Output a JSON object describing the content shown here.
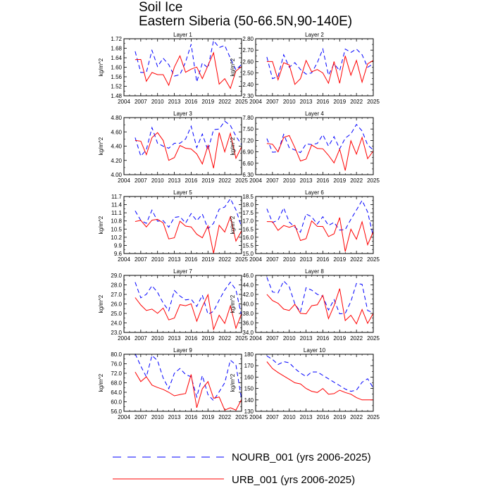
{
  "figure": {
    "title": "Soil Ice",
    "subtitle": "Eastern Siberia (50-66.5N,90-140E)"
  },
  "legend": [
    {
      "label": "NOURB_001 (yrs 2006-2025)",
      "color": "#0000ff",
      "style": "dashed"
    },
    {
      "label": "URB_001 (yrs 2006-2025)",
      "color": "#ff0000",
      "style": "solid"
    }
  ],
  "chart_data": [
    {
      "type": "line",
      "title": "Layer 1",
      "xlabel": "",
      "ylabel": "kg/m^2",
      "xlim": [
        2004,
        2025
      ],
      "xticks": [
        2004,
        2007,
        2010,
        2013,
        2016,
        2019,
        2022,
        2025
      ],
      "ylim": [
        1.48,
        1.72
      ],
      "yticks": [
        "1.48",
        "1.52",
        "1.56",
        "1.60",
        "1.64",
        "1.68",
        "1.72"
      ],
      "x": [
        2006,
        2007,
        2008,
        2009,
        2010,
        2011,
        2012,
        2013,
        2014,
        2015,
        2016,
        2017,
        2018,
        2019,
        2020,
        2021,
        2022,
        2023,
        2024,
        2025
      ],
      "series": [
        {
          "name": "NOURB_001",
          "values": [
            1.667,
            1.578,
            1.578,
            1.671,
            1.603,
            1.638,
            1.611,
            1.563,
            1.569,
            1.622,
            1.697,
            1.538,
            1.618,
            1.597,
            1.712,
            1.683,
            1.692,
            1.638,
            1.589,
            1.612
          ]
        },
        {
          "name": "URB_001",
          "values": [
            1.632,
            1.633,
            1.541,
            1.578,
            1.569,
            1.569,
            1.524,
            1.601,
            1.648,
            1.579,
            1.592,
            1.601,
            1.552,
            1.607,
            1.661,
            1.529,
            1.552,
            1.511,
            1.584,
            1.603
          ]
        }
      ]
    },
    {
      "type": "line",
      "title": "Layer 2",
      "xlabel": "",
      "ylabel": "kg/m^2",
      "xlim": [
        2004,
        2025
      ],
      "xticks": [
        2004,
        2007,
        2010,
        2013,
        2016,
        2019,
        2022,
        2025
      ],
      "ylim": [
        2.3,
        2.8
      ],
      "yticks": [
        "2.30",
        "2.40",
        "2.50",
        "2.60",
        "2.70",
        "2.80"
      ],
      "x": [
        2006,
        2007,
        2008,
        2009,
        2010,
        2011,
        2012,
        2013,
        2014,
        2015,
        2016,
        2017,
        2018,
        2019,
        2020,
        2021,
        2022,
        2023,
        2024,
        2025
      ],
      "series": [
        {
          "name": "NOURB_001",
          "values": [
            2.64,
            2.45,
            2.47,
            2.66,
            2.55,
            2.59,
            2.53,
            2.49,
            2.5,
            2.59,
            2.71,
            2.48,
            2.58,
            2.52,
            2.71,
            2.68,
            2.71,
            2.66,
            2.55,
            2.58
          ]
        },
        {
          "name": "URB_001",
          "values": [
            2.6,
            2.6,
            2.44,
            2.59,
            2.57,
            2.4,
            2.45,
            2.61,
            2.51,
            2.53,
            2.5,
            2.41,
            2.6,
            2.41,
            2.65,
            2.48,
            2.61,
            2.42,
            2.58,
            2.61
          ]
        }
      ]
    },
    {
      "type": "line",
      "title": "Layer 3",
      "xlabel": "",
      "ylabel": "kg/m^2",
      "xlim": [
        2004,
        2025
      ],
      "xticks": [
        2004,
        2007,
        2010,
        2013,
        2016,
        2019,
        2022,
        2025
      ],
      "ylim": [
        4.0,
        4.8
      ],
      "yticks": [
        "4.00",
        "4.20",
        "4.40",
        "4.60",
        "4.80"
      ],
      "x": [
        2006,
        2007,
        2008,
        2009,
        2010,
        2011,
        2012,
        2013,
        2014,
        2015,
        2016,
        2017,
        2018,
        2019,
        2020,
        2021,
        2022,
        2023,
        2024,
        2025
      ],
      "series": [
        {
          "name": "NOURB_001",
          "values": [
            4.52,
            4.26,
            4.35,
            4.66,
            4.44,
            4.4,
            4.37,
            4.44,
            4.44,
            4.5,
            4.68,
            4.38,
            4.57,
            4.34,
            4.63,
            4.64,
            4.75,
            4.69,
            4.54,
            4.42
          ]
        },
        {
          "name": "URB_001",
          "values": [
            4.48,
            4.47,
            4.28,
            4.52,
            4.59,
            4.48,
            4.2,
            4.24,
            4.41,
            4.37,
            4.36,
            4.29,
            4.15,
            4.41,
            4.09,
            4.59,
            4.32,
            4.58,
            4.23,
            4.39
          ]
        }
      ]
    },
    {
      "type": "line",
      "title": "Layer 4",
      "xlabel": "",
      "ylabel": "kg/m^2",
      "xlim": [
        2004,
        2025
      ],
      "xticks": [
        2004,
        2007,
        2010,
        2013,
        2016,
        2019,
        2022,
        2025
      ],
      "ylim": [
        6.3,
        7.8
      ],
      "yticks": [
        "6.30",
        "6.60",
        "6.90",
        "7.20",
        "7.50",
        "7.80"
      ],
      "x": [
        2006,
        2007,
        2008,
        2009,
        2010,
        2011,
        2012,
        2013,
        2014,
        2015,
        2016,
        2017,
        2018,
        2019,
        2020,
        2021,
        2022,
        2023,
        2024,
        2025
      ],
      "series": [
        {
          "name": "NOURB_001",
          "values": [
            7.25,
            6.89,
            6.9,
            7.36,
            7.01,
            6.95,
            6.88,
            7.11,
            7.09,
            7.12,
            7.35,
            7.05,
            7.3,
            6.98,
            7.26,
            7.37,
            7.62,
            7.45,
            7.08,
            6.95
          ]
        },
        {
          "name": "URB_001",
          "values": [
            7.12,
            7.1,
            6.9,
            7.28,
            7.33,
            7.01,
            6.66,
            6.71,
            7.08,
            6.99,
            6.98,
            6.81,
            6.61,
            6.97,
            6.41,
            7.19,
            6.84,
            7.28,
            6.72,
            6.92
          ]
        }
      ]
    },
    {
      "type": "line",
      "title": "Layer 5",
      "xlabel": "",
      "ylabel": "kg/m^2",
      "xlim": [
        2004,
        2025
      ],
      "xticks": [
        2004,
        2007,
        2010,
        2013,
        2016,
        2019,
        2022,
        2025
      ],
      "ylim": [
        9.6,
        11.7
      ],
      "yticks": [
        "9.6",
        "9.9",
        "10.2",
        "10.5",
        "10.8",
        "11.1",
        "11.4",
        "11.7"
      ],
      "x": [
        2006,
        2007,
        2008,
        2009,
        2010,
        2011,
        2012,
        2013,
        2014,
        2015,
        2016,
        2017,
        2018,
        2019,
        2020,
        2021,
        2022,
        2023,
        2024,
        2025
      ],
      "series": [
        {
          "name": "NOURB_001",
          "values": [
            11.17,
            10.82,
            10.71,
            11.2,
            10.79,
            10.81,
            10.57,
            10.93,
            10.96,
            10.72,
            11.07,
            10.81,
            11.05,
            10.52,
            10.71,
            11.23,
            11.31,
            11.62,
            11.21,
            10.58
          ]
        },
        {
          "name": "URB_001",
          "values": [
            10.78,
            10.82,
            10.58,
            10.83,
            10.86,
            10.73,
            10.14,
            10.18,
            10.79,
            10.61,
            10.58,
            10.31,
            10.18,
            10.62,
            9.61,
            10.64,
            10.39,
            10.95,
            10.06,
            10.44
          ]
        }
      ]
    },
    {
      "type": "line",
      "title": "Layer 6",
      "xlabel": "",
      "ylabel": "kg/m^2",
      "xlim": [
        2004,
        2025
      ],
      "xticks": [
        2004,
        2007,
        2010,
        2013,
        2016,
        2019,
        2022,
        2025
      ],
      "ylim": [
        15.0,
        18.5
      ],
      "yticks": [
        "15.0",
        "15.5",
        "16.0",
        "16.5",
        "17.0",
        "17.5",
        "18.0",
        "18.5"
      ],
      "x": [
        2006,
        2007,
        2008,
        2009,
        2010,
        2011,
        2012,
        2013,
        2014,
        2015,
        2016,
        2017,
        2018,
        2019,
        2020,
        2021,
        2022,
        2023,
        2024,
        2025
      ],
      "series": [
        {
          "name": "NOURB_001",
          "values": [
            17.75,
            16.91,
            17.05,
            17.8,
            16.93,
            16.62,
            16.31,
            17.43,
            17.25,
            16.81,
            17.26,
            16.73,
            16.91,
            16.44,
            16.47,
            17.1,
            17.67,
            18.26,
            17.55,
            16.05
          ]
        },
        {
          "name": "URB_001",
          "values": [
            16.96,
            16.95,
            16.42,
            16.72,
            16.61,
            16.73,
            15.8,
            15.91,
            17.0,
            16.67,
            16.66,
            16.04,
            16.21,
            17.21,
            15.12,
            16.49,
            15.88,
            16.95,
            15.54,
            16.34
          ]
        }
      ]
    },
    {
      "type": "line",
      "title": "Layer 7",
      "xlabel": "",
      "ylabel": "kg/m^2",
      "xlim": [
        2004,
        2025
      ],
      "xticks": [
        2004,
        2007,
        2010,
        2013,
        2016,
        2019,
        2022,
        2025
      ],
      "ylim": [
        23.0,
        29.0
      ],
      "yticks": [
        "23.0",
        "24.0",
        "25.0",
        "26.0",
        "27.0",
        "28.0",
        "29.0"
      ],
      "x": [
        2006,
        2007,
        2008,
        2009,
        2010,
        2011,
        2012,
        2013,
        2014,
        2015,
        2016,
        2017,
        2018,
        2019,
        2020,
        2021,
        2022,
        2023,
        2024,
        2025
      ],
      "series": [
        {
          "name": "NOURB_001",
          "values": [
            28.28,
            26.64,
            27.01,
            27.91,
            27.21,
            26.09,
            25.28,
            27.41,
            26.83,
            26.42,
            26.5,
            25.73,
            26.92,
            24.91,
            25.22,
            26.41,
            27.46,
            28.29,
            27.49,
            24.71
          ]
        },
        {
          "name": "URB_001",
          "values": [
            26.67,
            25.89,
            25.31,
            25.45,
            25.01,
            25.56,
            24.32,
            24.51,
            25.92,
            25.81,
            26.01,
            24.18,
            25.71,
            26.97,
            23.31,
            24.81,
            23.94,
            25.79,
            23.44,
            24.98
          ]
        }
      ]
    },
    {
      "type": "line",
      "title": "Layer 8",
      "xlabel": "",
      "ylabel": "kg/m^2",
      "xlim": [
        2004,
        2025
      ],
      "xticks": [
        2004,
        2007,
        2010,
        2013,
        2016,
        2019,
        2022,
        2025
      ],
      "ylim": [
        34.0,
        46.0
      ],
      "yticks": [
        "34.0",
        "36.0",
        "38.0",
        "40.0",
        "42.0",
        "44.0",
        "46.0"
      ],
      "x": [
        2006,
        2007,
        2008,
        2009,
        2010,
        2011,
        2012,
        2013,
        2014,
        2015,
        2016,
        2017,
        2018,
        2019,
        2020,
        2021,
        2022,
        2023,
        2024,
        2025
      ],
      "series": [
        {
          "name": "NOURB_001",
          "values": [
            45.6,
            42.51,
            42.31,
            44.82,
            43.61,
            39.99,
            38.31,
            43.41,
            42.91,
            42.01,
            41.61,
            38.71,
            40.91,
            37.91,
            38.01,
            40.51,
            44.31,
            44.12,
            38.61,
            38.13
          ]
        },
        {
          "name": "URB_001",
          "values": [
            42.01,
            40.71,
            40.12,
            38.91,
            38.62,
            39.91,
            38.01,
            37.91,
            39.62,
            39.81,
            41.81,
            36.91,
            39.62,
            43.22,
            36.51,
            37.61,
            35.81,
            38.82,
            35.91,
            38.02
          ]
        }
      ]
    },
    {
      "type": "line",
      "title": "Layer 9",
      "xlabel": "",
      "ylabel": "kg/m^2",
      "xlim": [
        2004,
        2025
      ],
      "xticks": [
        2004,
        2007,
        2010,
        2013,
        2016,
        2019,
        2022,
        2025
      ],
      "ylim": [
        56.0,
        80.0
      ],
      "yticks": [
        "56.0",
        "60.0",
        "64.0",
        "68.0",
        "72.0",
        "76.0",
        "80.0"
      ],
      "x": [
        2006,
        2007,
        2008,
        2009,
        2010,
        2011,
        2012,
        2013,
        2014,
        2015,
        2016,
        2017,
        2018,
        2019,
        2020,
        2021,
        2022,
        2023,
        2024,
        2025
      ],
      "series": [
        {
          "name": "NOURB_001",
          "values": [
            80.21,
            75.01,
            70.51,
            79.51,
            77.31,
            70.01,
            65.51,
            72.01,
            74.01,
            71.51,
            70.51,
            62.01,
            71.01,
            63.01,
            60.51,
            64.21,
            68.01,
            77.51,
            75.51,
            61.01
          ]
        },
        {
          "name": "URB_001",
          "values": [
            72.51,
            68.51,
            70.51,
            67.01,
            66.01,
            65.21,
            64.01,
            62.51,
            63.01,
            63.51,
            71.51,
            57.51,
            65.51,
            68.51,
            61.51,
            62.01,
            56.51,
            57.51,
            56.51,
            61.01
          ]
        }
      ]
    },
    {
      "type": "line",
      "title": "Layer 10",
      "xlabel": "",
      "ylabel": "kg/m^2",
      "xlim": [
        2004,
        2025
      ],
      "xticks": [
        2004,
        2007,
        2010,
        2013,
        2016,
        2019,
        2022,
        2025
      ],
      "ylim": [
        130,
        180
      ],
      "yticks": [
        "130",
        "140",
        "150",
        "160",
        "170",
        "180"
      ],
      "x": [
        2006,
        2007,
        2008,
        2009,
        2010,
        2011,
        2012,
        2013,
        2014,
        2015,
        2016,
        2017,
        2018,
        2019,
        2020,
        2021,
        2022,
        2023,
        2024,
        2025
      ],
      "series": [
        {
          "name": "NOURB_001",
          "values": [
            178.5,
            175.5,
            171.0,
            173.5,
            172.5,
            167.5,
            163.5,
            160.5,
            164.5,
            164.5,
            161.5,
            158.5,
            155.5,
            152.5,
            149.5,
            147.5,
            148.5,
            155.5,
            158.5,
            150.5
          ]
        },
        {
          "name": "URB_001",
          "values": [
            173.5,
            167.5,
            164.0,
            161.0,
            158.0,
            155.0,
            154.0,
            150.0,
            147.5,
            146.5,
            150.0,
            145.0,
            145.5,
            148.5,
            146.5,
            145.0,
            142.0,
            140.0,
            140.0,
            140.0
          ]
        }
      ]
    }
  ]
}
